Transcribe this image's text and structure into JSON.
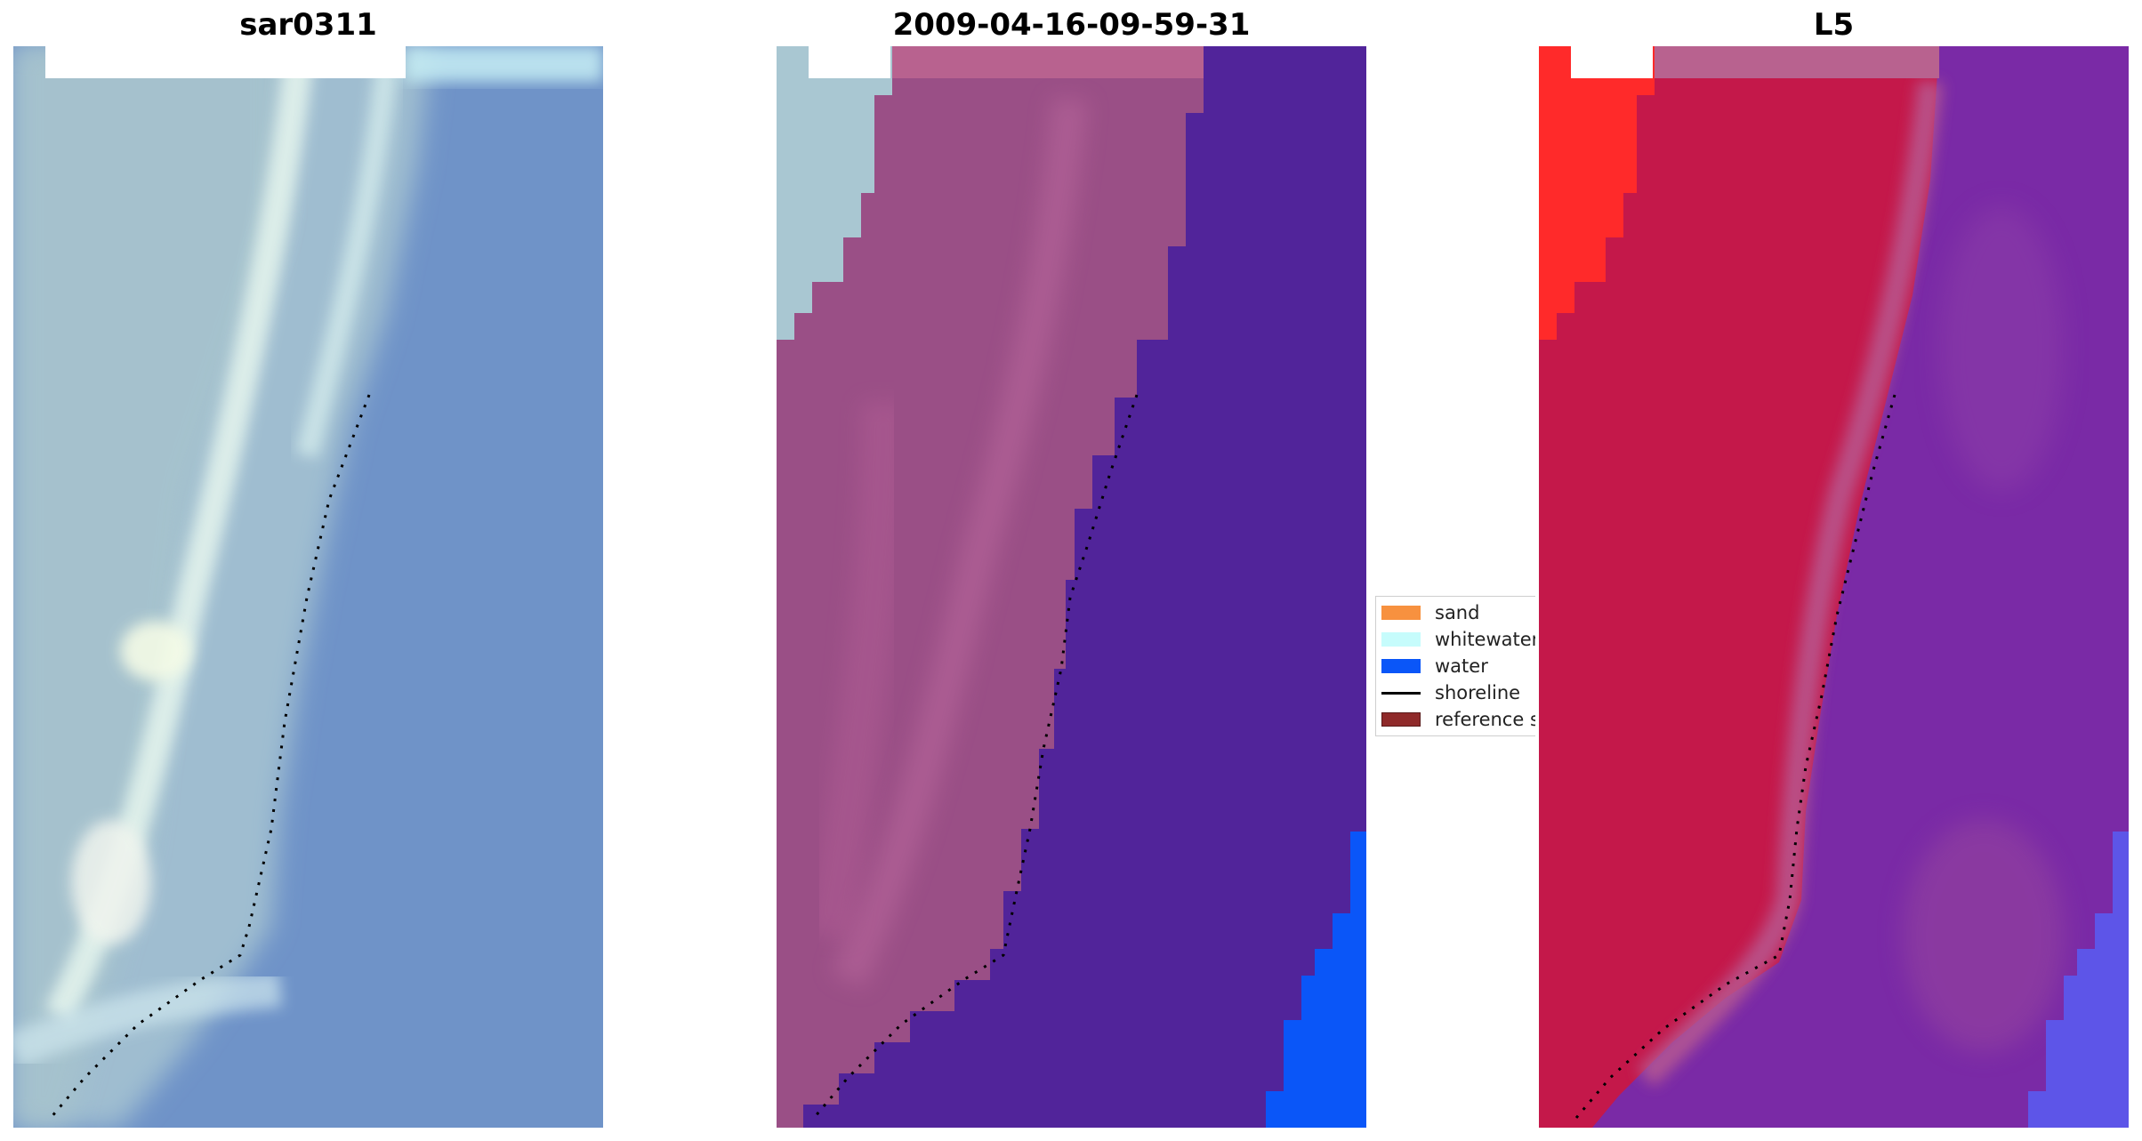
{
  "panels": [
    {
      "title": "sar0311",
      "kind": "rgb-image"
    },
    {
      "title": "2009-04-16-09-59-31",
      "kind": "classified-image"
    },
    {
      "title": "L5",
      "kind": "color-composite-image"
    }
  ],
  "legend": {
    "items": [
      {
        "label": "sand",
        "color": "#f7913f",
        "type": "patch"
      },
      {
        "label": "whitewater",
        "color": "#c6fcfc",
        "type": "patch"
      },
      {
        "label": "water",
        "color": "#0a56f8",
        "type": "patch"
      },
      {
        "label": "shoreline",
        "color": "#000000",
        "type": "line"
      },
      {
        "label": "reference s",
        "color": "#8f2a2a",
        "type": "patch"
      }
    ]
  },
  "colors": {
    "rgb_water": "#6f93c8",
    "rgb_beach": "#9fbdd0",
    "rgb_whitewater": "#e6f6ee",
    "class_beach": "#9a4f86",
    "class_water": "#51249a",
    "class_waterbody": "#0a56f8",
    "class_whitewater": "#a9c7d2",
    "l5_land": "#c4184a",
    "l5_water": "#7a2aa6",
    "l5_red": "#ff2a2a",
    "l5_pink": "#b85a92",
    "shoreline": "#000000"
  }
}
